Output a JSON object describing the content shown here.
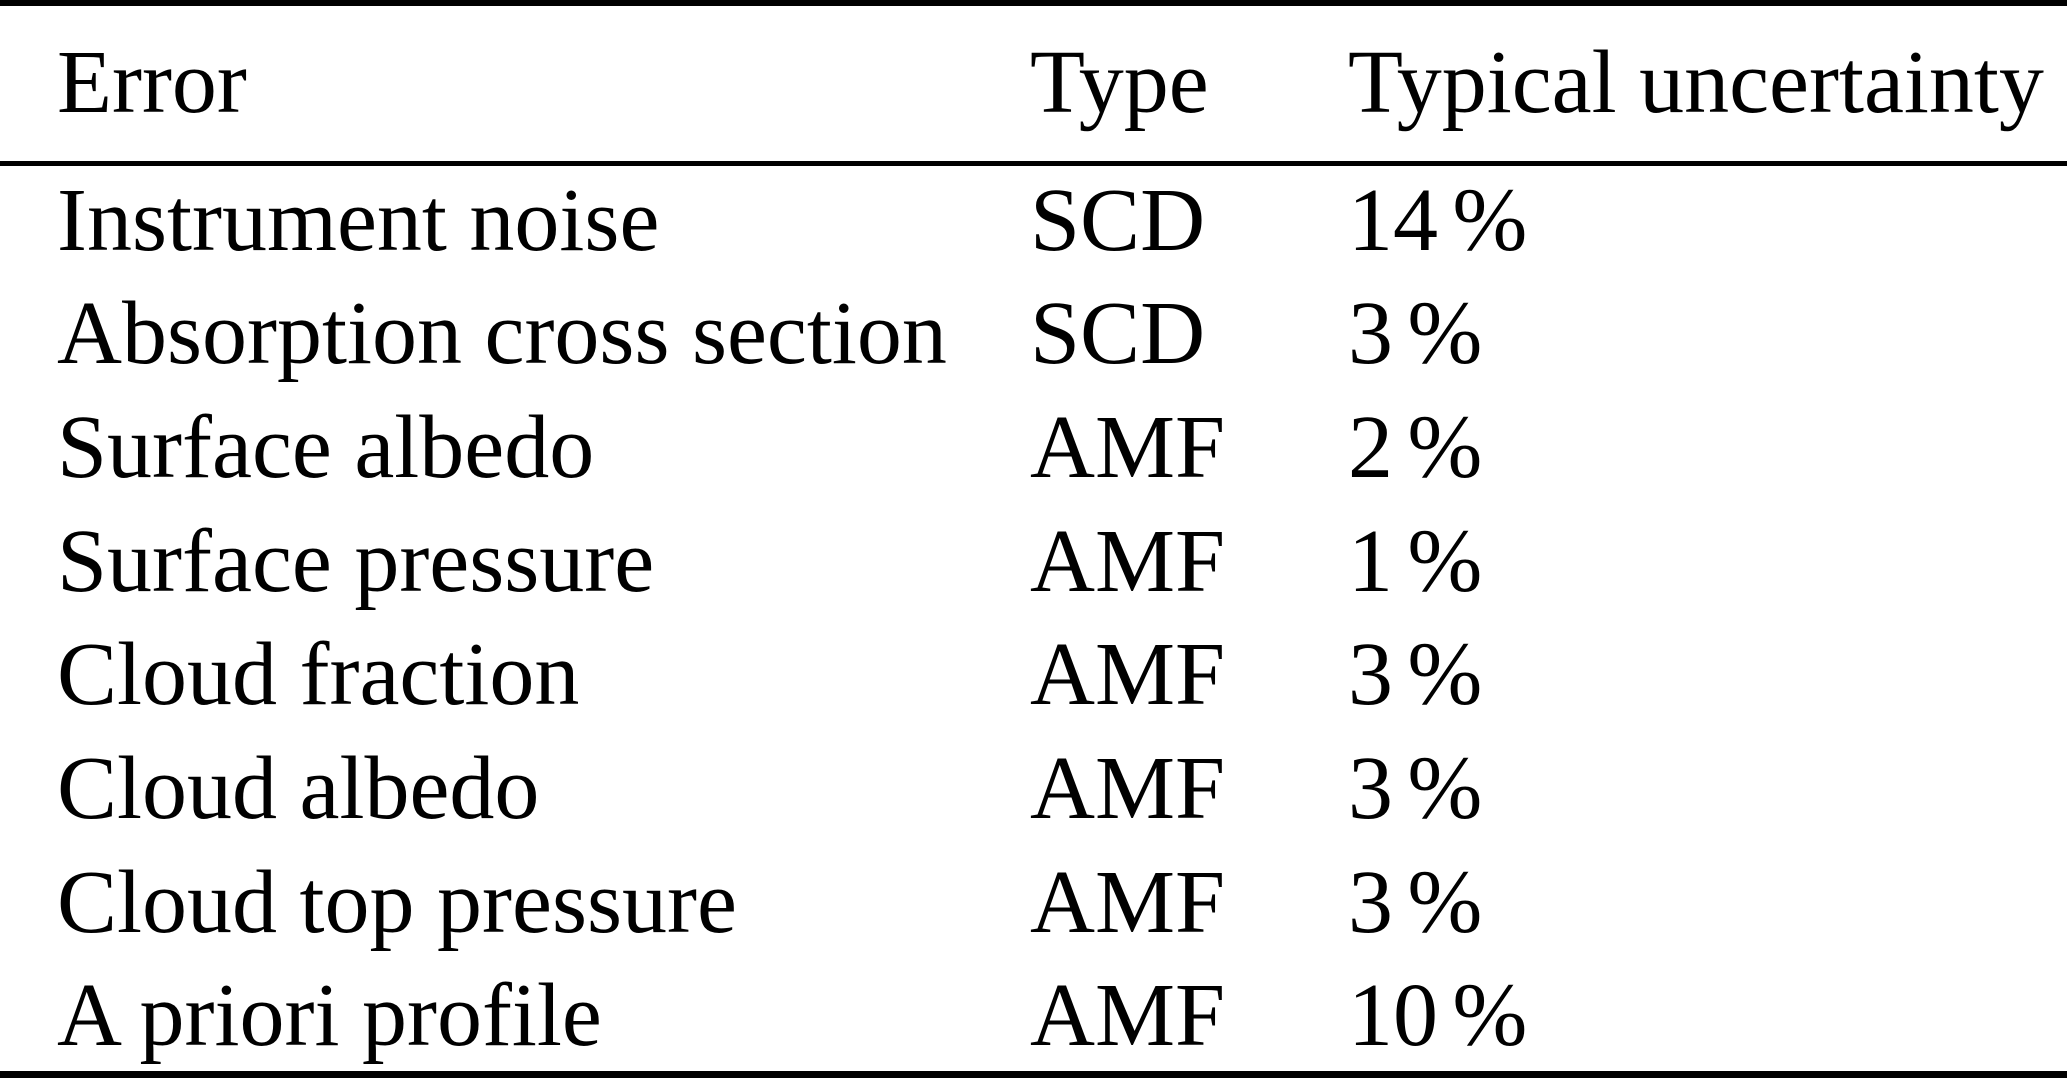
{
  "table": {
    "columns": [
      {
        "label": "Error"
      },
      {
        "label": "Type"
      },
      {
        "label": "Typical uncertainty"
      }
    ],
    "rows": [
      {
        "error": "Instrument noise",
        "type": "SCD",
        "uncertainty": "14 %"
      },
      {
        "error": "Absorption cross section",
        "type": "SCD",
        "uncertainty": "3 %"
      },
      {
        "error": "Surface albedo",
        "type": "AMF",
        "uncertainty": "2 %"
      },
      {
        "error": "Surface pressure",
        "type": "AMF",
        "uncertainty": "1 %"
      },
      {
        "error": "Cloud fraction",
        "type": "AMF",
        "uncertainty": "3 %"
      },
      {
        "error": "Cloud albedo",
        "type": "AMF",
        "uncertainty": "3 %"
      },
      {
        "error": "Cloud top pressure",
        "type": "AMF",
        "uncertainty": "3 %"
      },
      {
        "error": "A priori profile",
        "type": "AMF",
        "uncertainty": "10 %"
      }
    ],
    "colors": {
      "text": "#000000",
      "background": "#ffffff",
      "rule": "#000000"
    }
  }
}
